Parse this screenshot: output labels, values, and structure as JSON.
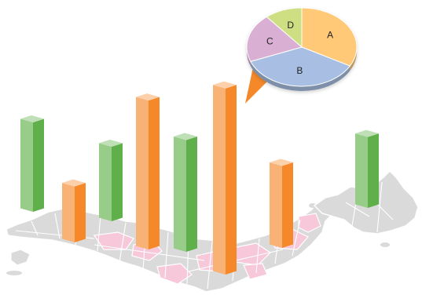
{
  "chart_data": [
    {
      "type": "bar",
      "title": "",
      "xlabel": "",
      "ylabel": "",
      "legend": "none",
      "grid": false,
      "axes_visible": false,
      "background": "map-of-japan",
      "series": [
        {
          "name": "",
          "color": "#5FB04A",
          "values": [
            125,
            null,
            105,
            null,
            155,
            null,
            null,
            100
          ]
        },
        {
          "name": "",
          "color": "#F5892A",
          "values": [
            null,
            80,
            null,
            205,
            null,
            255,
            115,
            null
          ]
        }
      ],
      "categories": [
        "",
        "",
        "",
        "",
        "",
        "",
        "",
        ""
      ],
      "ylim": [
        0,
        270
      ]
    },
    {
      "type": "pie",
      "title": "",
      "labels": [
        "A",
        "B",
        "C",
        "D"
      ],
      "values": [
        33,
        36,
        20,
        11
      ],
      "colors": [
        "#FFC978",
        "#A8BFE3",
        "#D9AFD4",
        "#CEDF83"
      ],
      "connected_to_bar": 6
    }
  ],
  "colors": {
    "map_fill": "#DADADA",
    "map_highlight": "#F6C8DA",
    "map_stroke": "#ffffff",
    "callout": "#F5892A"
  }
}
